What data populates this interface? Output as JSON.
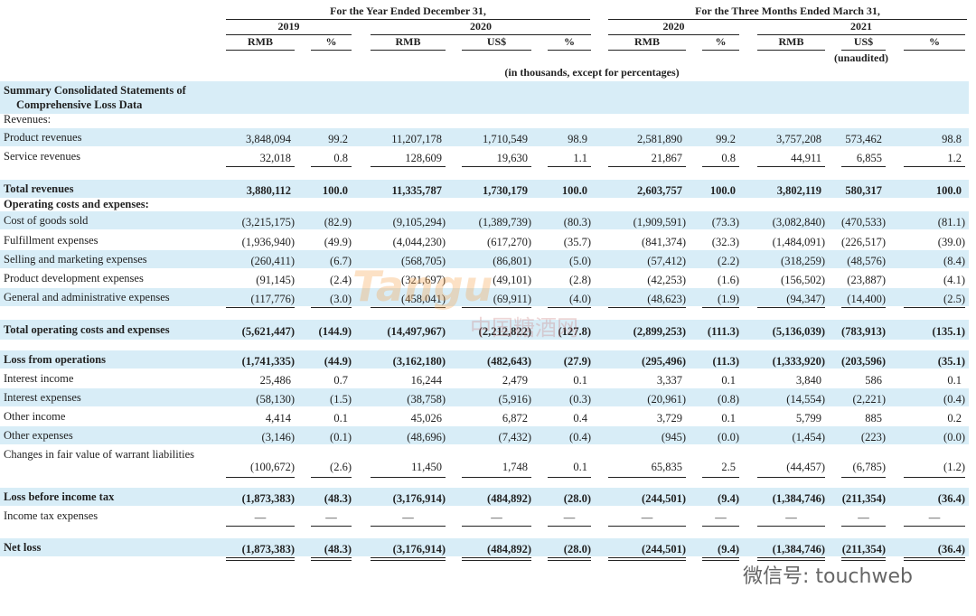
{
  "header": {
    "period_groups": [
      "For the Year Ended December 31,",
      "For the Three Months Ended March 31,"
    ],
    "years": [
      "2019",
      "2020",
      "2020",
      "2021"
    ],
    "units": [
      "RMB",
      "%",
      "RMB",
      "US$",
      "%",
      "RMB",
      "%",
      "RMB",
      "US$",
      "%"
    ],
    "unaudited": "(unaudited)",
    "note": "(in thousands, except for percentages)"
  },
  "table": {
    "rows": [
      {
        "label": "Summary Consolidated Statements of Comprehensive Loss Data",
        "values": []
      },
      {
        "label": "Revenues:",
        "values": []
      },
      {
        "label": "Product revenues",
        "values": [
          "3,848,094",
          "99.2",
          "11,207,178",
          "1,710,549",
          "98.9",
          "2,581,890",
          "99.2",
          "3,757,208",
          "573,462",
          "98.8"
        ]
      },
      {
        "label": "Service revenues",
        "values": [
          "32,018",
          "0.8",
          "128,609",
          "19,630",
          "1.1",
          "21,867",
          "0.8",
          "44,911",
          "6,855",
          "1.2"
        ]
      },
      {
        "label": "Total revenues",
        "values": [
          "3,880,112",
          "100.0",
          "11,335,787",
          "1,730,179",
          "100.0",
          "2,603,757",
          "100.0",
          "3,802,119",
          "580,317",
          "100.0"
        ]
      },
      {
        "label": "Operating costs and expenses:",
        "values": []
      },
      {
        "label": "Cost of goods sold",
        "values": [
          "(3,215,175)",
          "(82.9)",
          "(9,105,294)",
          "(1,389,739)",
          "(80.3)",
          "(1,909,591)",
          "(73.3)",
          "(3,082,840)",
          "(470,533)",
          "(81.1)"
        ]
      },
      {
        "label": "Fulfillment expenses",
        "values": [
          "(1,936,940)",
          "(49.9)",
          "(4,044,230)",
          "(617,270)",
          "(35.7)",
          "(841,374)",
          "(32.3)",
          "(1,484,091)",
          "(226,517)",
          "(39.0)"
        ]
      },
      {
        "label": "Selling and marketing expenses",
        "values": [
          "(260,411)",
          "(6.7)",
          "(568,705)",
          "(86,801)",
          "(5.0)",
          "(57,412)",
          "(2.2)",
          "(318,259)",
          "(48,576)",
          "(8.4)"
        ]
      },
      {
        "label": "Product development expenses",
        "values": [
          "(91,145)",
          "(2.4)",
          "(321,697)",
          "(49,101)",
          "(2.8)",
          "(42,253)",
          "(1.6)",
          "(156,502)",
          "(23,887)",
          "(4.1)"
        ]
      },
      {
        "label": "General and administrative expenses",
        "values": [
          "(117,776)",
          "(3.0)",
          "(458,041)",
          "(69,911)",
          "(4.0)",
          "(48,623)",
          "(1.9)",
          "(94,347)",
          "(14,400)",
          "(2.5)"
        ]
      },
      {
        "label": "Total operating costs and expenses",
        "values": [
          "(5,621,447)",
          "(144.9)",
          "(14,497,967)",
          "(2,212,822)",
          "(127.8)",
          "(2,899,253)",
          "(111.3)",
          "(5,136,039)",
          "(783,913)",
          "(135.1)"
        ]
      },
      {
        "label": "Loss from operations",
        "values": [
          "(1,741,335)",
          "(44.9)",
          "(3,162,180)",
          "(482,643)",
          "(27.9)",
          "(295,496)",
          "(11.3)",
          "(1,333,920)",
          "(203,596)",
          "(35.1)"
        ]
      },
      {
        "label": "Interest income",
        "values": [
          "25,486",
          "0.7",
          "16,244",
          "2,479",
          "0.1",
          "3,337",
          "0.1",
          "3,840",
          "586",
          "0.1"
        ]
      },
      {
        "label": "Interest expenses",
        "values": [
          "(58,130)",
          "(1.5)",
          "(38,758)",
          "(5,916)",
          "(0.3)",
          "(20,961)",
          "(0.8)",
          "(14,554)",
          "(2,221)",
          "(0.4)"
        ]
      },
      {
        "label": "Other income",
        "values": [
          "4,414",
          "0.1",
          "45,026",
          "6,872",
          "0.4",
          "3,729",
          "0.1",
          "5,799",
          "885",
          "0.2"
        ]
      },
      {
        "label": "Other expenses",
        "values": [
          "(3,146)",
          "(0.1)",
          "(48,696)",
          "(7,432)",
          "(0.4)",
          "(945)",
          "(0.0)",
          "(1,454)",
          "(223)",
          "(0.0)"
        ]
      },
      {
        "label": "Changes in fair value of warrant liabilities",
        "values": [
          "(100,672)",
          "(2.6)",
          "11,450",
          "1,748",
          "0.1",
          "65,835",
          "2.5",
          "(44,457)",
          "(6,785)",
          "(1.2)"
        ]
      },
      {
        "label": "Loss before income tax",
        "values": [
          "(1,873,383)",
          "(48.3)",
          "(3,176,914)",
          "(484,892)",
          "(28.0)",
          "(244,501)",
          "(9.4)",
          "(1,384,746)",
          "(211,354)",
          "(36.4)"
        ]
      },
      {
        "label": "Income tax expenses",
        "values": [
          "—",
          "—",
          "—",
          "—",
          "—",
          "—",
          "—",
          "—",
          "—",
          "—"
        ]
      },
      {
        "label": "Net loss",
        "values": [
          "(1,873,383)",
          "(48.3)",
          "(3,176,914)",
          "(484,892)",
          "(28.0)",
          "(244,501)",
          "(9.4)",
          "(1,384,746)",
          "(211,354)",
          "(36.4)"
        ]
      }
    ]
  },
  "watermarks": [
    "Tangu",
    "中国糖酒网",
    "微信号: touchweb"
  ]
}
